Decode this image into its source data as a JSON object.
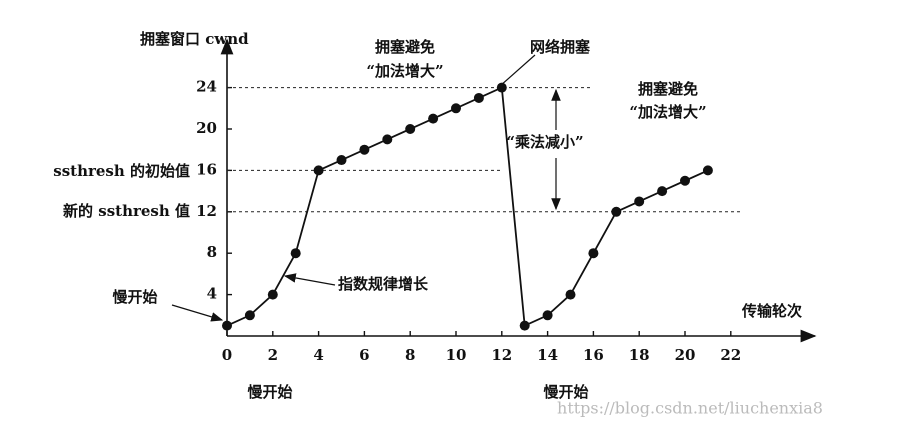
{
  "chart_data": {
    "type": "line",
    "y_axis_label": "拥塞窗口 cwnd",
    "x_axis_label": "传输轮次",
    "x": [
      0,
      1,
      2,
      3,
      4,
      5,
      6,
      7,
      8,
      9,
      10,
      11,
      12,
      13,
      14,
      15,
      16,
      17,
      18,
      19,
      20,
      21
    ],
    "series": [
      {
        "name": "cwnd",
        "color": "#111111",
        "values": [
          1,
          2,
          4,
          8,
          16,
          17,
          18,
          19,
          20,
          21,
          22,
          23,
          24,
          1,
          2,
          4,
          8,
          12,
          13,
          14,
          15,
          16
        ]
      }
    ],
    "xlim": [
      0,
      25.5
    ],
    "xticks": [
      0,
      2,
      4,
      6,
      8,
      10,
      12,
      14,
      16,
      18,
      20,
      22
    ],
    "ylim": [
      0,
      28.5
    ],
    "yticks": [
      4,
      8,
      12,
      16,
      20,
      24
    ],
    "reference_lines": [
      24,
      16,
      12
    ],
    "annotations": [
      "拥塞避免",
      "“加法增大”",
      "网络拥塞",
      "拥塞避免",
      "“加法增大”",
      "“乘法减小”",
      "指数规律增长",
      "慢开始",
      "慢开始",
      "慢开始",
      "ssthresh 的初始值",
      "新的 ssthresh 值",
      "https://blog.csdn.net/liuchenxia8"
    ]
  }
}
